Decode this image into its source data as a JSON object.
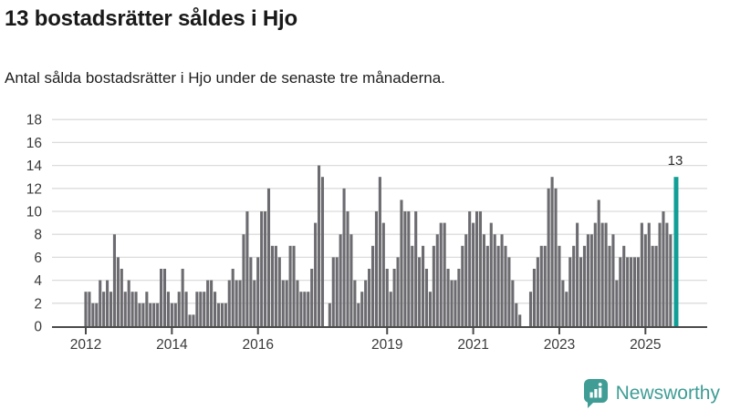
{
  "title": "13 bostadsrätter såldes i Hjo",
  "subtitle": "Antal sålda bostadsrätter i Hjo under de senaste tre månaderna.",
  "annotation": {
    "last_value_label": "13"
  },
  "branding": {
    "name": "Newsworthy",
    "icon": "bar-chart-speech-bubble-icon",
    "color": "#3f9d95"
  },
  "colors": {
    "bar": "#6c6b70",
    "highlight": "#109e96",
    "grid": "#dcdcdc",
    "axis": "#4a4a4a",
    "tick_label": "#3a3a3a",
    "title_text": "#191919"
  },
  "chart_data": {
    "type": "bar",
    "title": "13 bostadsrätter såldes i Hjo",
    "subtitle": "Antal sålda bostadsrätter i Hjo under de senaste tre månaderna.",
    "xlabel": "",
    "ylabel": "",
    "frequency": "monthly",
    "start_month": "2012-01",
    "end_month": "2025-09",
    "ylim": [
      0,
      18
    ],
    "y_ticks": [
      0,
      2,
      4,
      6,
      8,
      10,
      12,
      14,
      16,
      18
    ],
    "grid": true,
    "x_tick_labels": [
      "2012",
      "2014",
      "2016",
      "2019",
      "2021",
      "2023",
      "2025"
    ],
    "x_tick_month_index": [
      0,
      24,
      48,
      84,
      108,
      132,
      156
    ],
    "highlight_last": true,
    "highlight_value": 13,
    "values": [
      3,
      3,
      2,
      2,
      4,
      3,
      4,
      3,
      8,
      6,
      5,
      3,
      4,
      3,
      3,
      2,
      2,
      3,
      2,
      2,
      2,
      5,
      5,
      3,
      2,
      2,
      3,
      5,
      3,
      1,
      1,
      3,
      3,
      3,
      4,
      4,
      3,
      2,
      2,
      2,
      4,
      5,
      4,
      4,
      8,
      10,
      6,
      4,
      6,
      10,
      10,
      12,
      7,
      7,
      6,
      4,
      4,
      7,
      7,
      4,
      3,
      3,
      3,
      5,
      9,
      14,
      13,
      0,
      2,
      6,
      6,
      8,
      12,
      10,
      8,
      4,
      2,
      3,
      4,
      5,
      7,
      10,
      13,
      9,
      5,
      3,
      5,
      6,
      11,
      10,
      10,
      7,
      10,
      6,
      7,
      5,
      3,
      7,
      8,
      9,
      9,
      5,
      4,
      4,
      5,
      7,
      8,
      10,
      9,
      10,
      10,
      8,
      7,
      9,
      8,
      7,
      8,
      7,
      6,
      4,
      2,
      1,
      0,
      0,
      3,
      5,
      6,
      7,
      7,
      12,
      13,
      12,
      7,
      4,
      3,
      6,
      7,
      9,
      6,
      7,
      8,
      8,
      9,
      11,
      9,
      9,
      7,
      8,
      4,
      6,
      7,
      6,
      6,
      6,
      6,
      9,
      8,
      9,
      7,
      7,
      9,
      10,
      9,
      8,
      13
    ]
  }
}
